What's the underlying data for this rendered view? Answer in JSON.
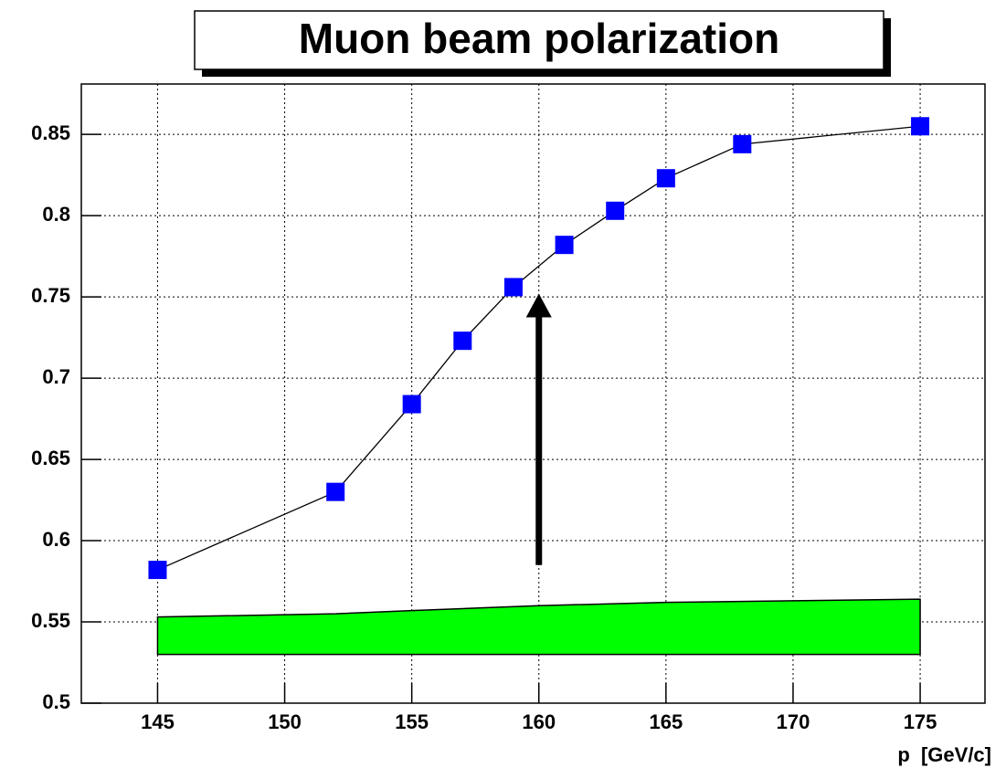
{
  "chart_data": {
    "type": "line",
    "title": "Muon beam polarization",
    "x_label": "p  [GeV/c]",
    "x": [
      145,
      152,
      155,
      157,
      159,
      161,
      163,
      165,
      168,
      175
    ],
    "values": [
      0.582,
      0.63,
      0.684,
      0.723,
      0.756,
      0.782,
      0.803,
      0.823,
      0.844,
      0.855
    ],
    "color": "#0000ff",
    "line_color": "#000000",
    "band": {
      "x": [
        145,
        152,
        155,
        160,
        165,
        170,
        175
      ],
      "upper": [
        0.553,
        0.555,
        0.557,
        0.56,
        0.562,
        0.563,
        0.564
      ],
      "lower": [
        0.53,
        0.53,
        0.53,
        0.53,
        0.53,
        0.53,
        0.53
      ],
      "color": "#00ff00"
    },
    "arrow": {
      "x": 160,
      "y_start": 0.585,
      "y_end": 0.752
    },
    "xlim": [
      142,
      177.55
    ],
    "ylim": [
      0.5,
      0.881
    ],
    "xticks": [
      145,
      150,
      155,
      160,
      165,
      170,
      175
    ],
    "yticks": [
      0.5,
      0.55,
      0.6,
      0.65,
      0.7,
      0.75,
      0.8,
      0.85
    ],
    "grid": true
  }
}
